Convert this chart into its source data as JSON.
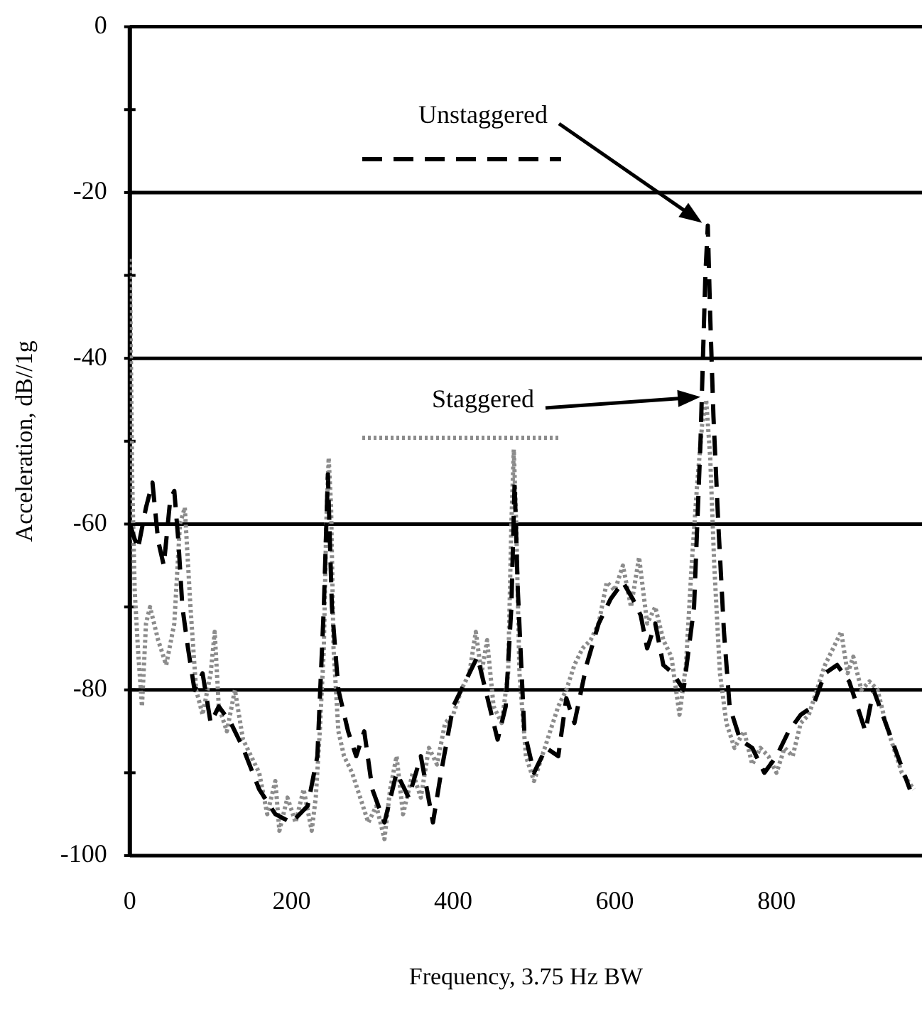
{
  "chart_data": {
    "type": "line",
    "xlabel": "Frequency, 3.75 Hz BW",
    "ylabel": "Acceleration, dB//1g",
    "xlim": [
      0,
      980
    ],
    "xticks": [
      0,
      200,
      400,
      600,
      800
    ],
    "ylim": [
      -100,
      0
    ],
    "yticks": [
      0,
      {
        "value": -10,
        "label": null
      },
      -20,
      {
        "value": -30,
        "label": null
      },
      -40,
      {
        "value": -50,
        "label": null
      },
      -60,
      {
        "value": -70,
        "label": null
      },
      -80,
      {
        "value": -90,
        "label": null
      },
      -100
    ],
    "grid": "y",
    "marker": "none",
    "series": [
      {
        "name": "Unstaggered",
        "color": "#000000",
        "line_style": "dashed",
        "x": [
          0,
          10,
          20,
          28,
          35,
          42,
          50,
          55,
          60,
          65,
          72,
          80,
          90,
          100,
          110,
          125,
          140,
          160,
          180,
          200,
          220,
          232,
          240,
          245,
          250,
          258,
          270,
          280,
          290,
          300,
          315,
          330,
          345,
          360,
          375,
          385,
          400,
          415,
          430,
          440,
          455,
          465,
          472,
          476,
          480,
          488,
          500,
          515,
          530,
          540,
          550,
          565,
          580,
          595,
          610,
          622,
          632,
          640,
          650,
          660,
          672,
          685,
          698,
          706,
          712,
          715,
          718,
          722,
          728,
          735,
          742,
          755,
          770,
          785,
          800,
          815,
          830,
          845,
          860,
          875,
          890,
          900,
          910,
          920,
          935,
          950,
          965
        ],
        "values": [
          -60,
          -63,
          -58,
          -55,
          -62,
          -65,
          -57,
          -56,
          -62,
          -70,
          -75,
          -80,
          -78,
          -84,
          -82,
          -84,
          -87,
          -92,
          -95,
          -96,
          -94,
          -88,
          -70,
          -54,
          -70,
          -80,
          -85,
          -88,
          -85,
          -92,
          -96,
          -90,
          -93,
          -88,
          -96,
          -90,
          -82,
          -79,
          -76,
          -80,
          -86,
          -82,
          -70,
          -55,
          -68,
          -85,
          -90,
          -87,
          -88,
          -81,
          -84,
          -77,
          -72,
          -69,
          -67,
          -69,
          -71,
          -75,
          -72,
          -77,
          -78,
          -80,
          -70,
          -50,
          -30,
          -24,
          -35,
          -47,
          -60,
          -73,
          -82,
          -86,
          -87,
          -90,
          -88,
          -85,
          -83,
          -82,
          -78,
          -77,
          -79,
          -82,
          -85,
          -80,
          -84,
          -88,
          -92
        ]
      },
      {
        "name": "Staggered",
        "color": "#8c8c8c",
        "line_style": "dotted",
        "x": [
          0,
          3,
          6,
          10,
          15,
          20,
          25,
          35,
          45,
          55,
          62,
          68,
          75,
          82,
          90,
          100,
          105,
          110,
          120,
          130,
          140,
          150,
          160,
          170,
          180,
          185,
          195,
          205,
          215,
          225,
          230,
          235,
          240,
          243,
          246,
          249,
          252,
          258,
          265,
          275,
          285,
          295,
          305,
          315,
          322,
          330,
          338,
          350,
          360,
          370,
          380,
          390,
          400,
          410,
          420,
          428,
          435,
          442,
          450,
          460,
          468,
          472,
          475,
          478,
          482,
          490,
          500,
          510,
          520,
          530,
          540,
          550,
          560,
          570,
          580,
          590,
          600,
          610,
          620,
          630,
          640,
          650,
          660,
          670,
          680,
          688,
          695,
          702,
          708,
          713,
          718,
          723,
          730,
          738,
          748,
          760,
          770,
          780,
          790,
          800,
          810,
          820,
          830,
          840,
          850,
          860,
          870,
          880,
          888,
          895,
          905,
          915,
          925,
          935,
          945,
          955,
          970
        ],
        "values": [
          -28,
          -55,
          -68,
          -75,
          -82,
          -72,
          -70,
          -74,
          -77,
          -72,
          -60,
          -58,
          -70,
          -80,
          -83,
          -78,
          -73,
          -82,
          -85,
          -80,
          -86,
          -88,
          -90,
          -95,
          -91,
          -97,
          -93,
          -96,
          -92,
          -97,
          -93,
          -85,
          -75,
          -60,
          -52,
          -58,
          -75,
          -85,
          -88,
          -90,
          -93,
          -96,
          -94,
          -98,
          -92,
          -88,
          -95,
          -90,
          -93,
          -87,
          -89,
          -84,
          -83,
          -80,
          -78,
          -73,
          -78,
          -74,
          -82,
          -84,
          -78,
          -60,
          -51,
          -60,
          -78,
          -88,
          -91,
          -88,
          -85,
          -82,
          -80,
          -77,
          -75,
          -74,
          -72,
          -67,
          -68,
          -65,
          -70,
          -64,
          -72,
          -70,
          -74,
          -76,
          -83,
          -77,
          -65,
          -55,
          -48,
          -45,
          -52,
          -65,
          -78,
          -84,
          -87,
          -85,
          -89,
          -87,
          -88,
          -90,
          -87,
          -88,
          -84,
          -83,
          -80,
          -77,
          -75,
          -73,
          -78,
          -76,
          -80,
          -79,
          -80,
          -84,
          -87,
          -90,
          -92
        ]
      }
    ]
  }
}
